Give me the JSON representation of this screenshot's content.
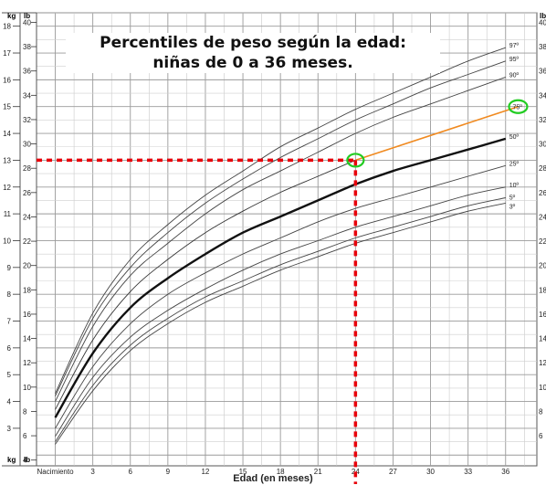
{
  "chart_data": {
    "type": "line",
    "title_line1": "Percentiles de peso según la edad:",
    "title_line2": "niñas de 0 a 36 meses.",
    "xlabel": "Edad (en meses)",
    "left_unit_kg": "kg",
    "left_unit_lb": "lb",
    "right_unit_lb": "lb",
    "x_tick_labels": [
      "Nacimiento",
      "3",
      "6",
      "9",
      "12",
      "15",
      "18",
      "21",
      "24",
      "27",
      "30",
      "33",
      "36"
    ],
    "x_tick_values": [
      0,
      3,
      6,
      9,
      12,
      15,
      18,
      21,
      24,
      27,
      30,
      33,
      36
    ],
    "xlim": [
      -1.5,
      38.5
    ],
    "kg_ticks": [
      3,
      4,
      5,
      6,
      7,
      8,
      9,
      10,
      11,
      12,
      13,
      14,
      15,
      16,
      17,
      18
    ],
    "lb_ticks": [
      6,
      8,
      10,
      12,
      14,
      16,
      18,
      20,
      22,
      24,
      26,
      28,
      30,
      32,
      34,
      36,
      38,
      40
    ],
    "lb_bottom": "4",
    "ylim_kg": [
      1.6,
      18.5
    ],
    "grid": true,
    "series": [
      {
        "name": "3º",
        "label": "3º",
        "x": [
          0,
          3,
          6,
          9,
          12,
          15,
          18,
          21,
          24,
          27,
          30,
          33,
          36
        ],
        "values": [
          2.4,
          4.4,
          5.9,
          6.9,
          7.7,
          8.3,
          8.9,
          9.4,
          9.9,
          10.3,
          10.7,
          11.1,
          11.4
        ]
      },
      {
        "name": "5º",
        "label": "5º",
        "x": [
          0,
          3,
          6,
          9,
          12,
          15,
          18,
          21,
          24,
          27,
          30,
          33,
          36
        ],
        "values": [
          2.5,
          4.6,
          6.1,
          7.1,
          7.9,
          8.5,
          9.1,
          9.6,
          10.1,
          10.5,
          10.9,
          11.3,
          11.6
        ]
      },
      {
        "name": "10º",
        "label": "10º",
        "x": [
          0,
          3,
          6,
          9,
          12,
          15,
          18,
          21,
          24,
          27,
          30,
          33,
          36
        ],
        "values": [
          2.7,
          4.9,
          6.4,
          7.4,
          8.2,
          8.9,
          9.5,
          10.0,
          10.5,
          10.9,
          11.3,
          11.7,
          12.0
        ]
      },
      {
        "name": "25º",
        "label": "25º",
        "x": [
          0,
          3,
          6,
          9,
          12,
          15,
          18,
          21,
          24,
          27,
          30,
          33,
          36
        ],
        "values": [
          3.0,
          5.3,
          6.9,
          8.0,
          8.8,
          9.5,
          10.1,
          10.7,
          11.2,
          11.6,
          12.0,
          12.4,
          12.8
        ]
      },
      {
        "name": "50º",
        "label": "50º",
        "x": [
          0,
          3,
          6,
          9,
          12,
          15,
          18,
          21,
          24,
          27,
          30,
          33,
          36
        ],
        "values": [
          3.4,
          5.8,
          7.5,
          8.6,
          9.5,
          10.3,
          10.9,
          11.5,
          12.1,
          12.6,
          13.0,
          13.4,
          13.8
        ]
      },
      {
        "name": "75º",
        "label": "75º",
        "x": [
          0,
          3,
          6,
          9,
          12,
          15,
          18,
          21,
          24,
          27,
          30,
          33,
          36
        ],
        "values": [
          3.7,
          6.3,
          8.1,
          9.3,
          10.3,
          11.1,
          11.8,
          12.4,
          13.0,
          13.6,
          14.1,
          14.6,
          15.0
        ]
      },
      {
        "name": "90º",
        "label": "90º",
        "x": [
          0,
          3,
          6,
          9,
          12,
          15,
          18,
          21,
          24,
          27,
          30,
          33,
          36
        ],
        "values": [
          4.0,
          6.8,
          8.7,
          9.9,
          11.0,
          11.9,
          12.6,
          13.3,
          14.0,
          14.6,
          15.1,
          15.6,
          16.1
        ]
      },
      {
        "name": "95º",
        "label": "95º",
        "x": [
          0,
          3,
          6,
          9,
          12,
          15,
          18,
          21,
          24,
          27,
          30,
          33,
          36
        ],
        "values": [
          4.2,
          7.1,
          9.0,
          10.3,
          11.4,
          12.3,
          13.1,
          13.8,
          14.5,
          15.1,
          15.7,
          16.2,
          16.7
        ]
      },
      {
        "name": "97º",
        "label": "97º",
        "x": [
          0,
          3,
          6,
          9,
          12,
          15,
          18,
          21,
          24,
          27,
          30,
          33,
          36
        ],
        "values": [
          4.3,
          7.3,
          9.3,
          10.6,
          11.7,
          12.6,
          13.5,
          14.2,
          14.9,
          15.5,
          16.1,
          16.7,
          17.2
        ]
      }
    ],
    "highlight_series": "50º",
    "annotation": {
      "x": 24,
      "y_kg": 13.0,
      "end_x": 37,
      "end_y_kg": 15.0,
      "label_ref": "75º",
      "dash_color": "#e8000b",
      "circle_color": "#22cc22",
      "orange_color": "#f08a20"
    }
  }
}
